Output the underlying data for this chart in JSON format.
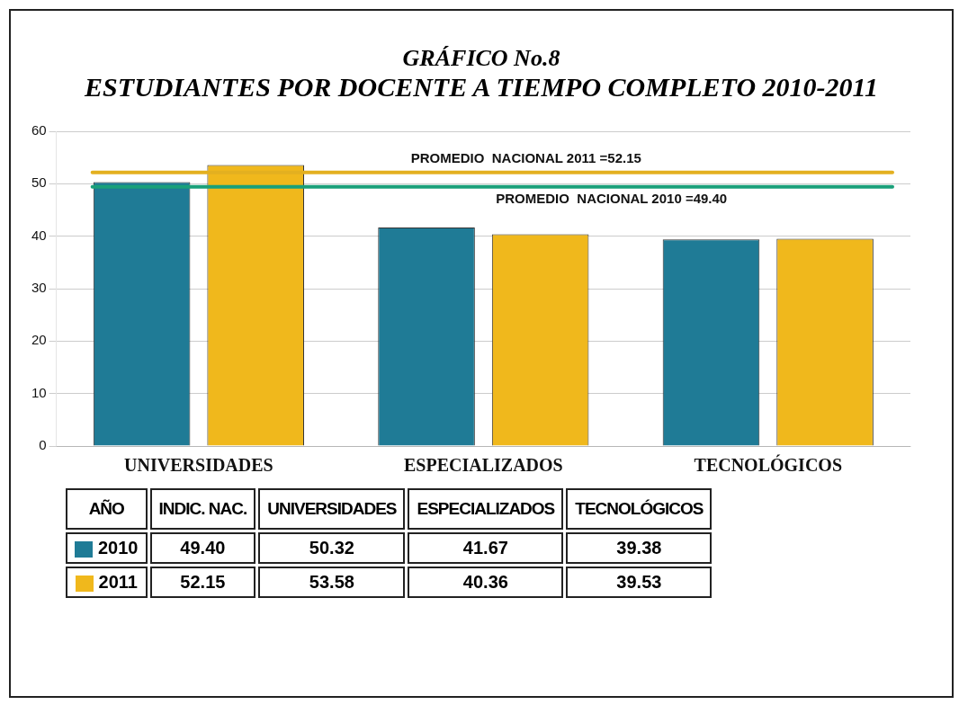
{
  "chart_data": {
    "type": "bar",
    "title": "GRÁFICO No.8",
    "subtitle": "ESTUDIANTES POR DOCENTE A TIEMPO COMPLETO 2010-2011",
    "categories": [
      "UNIVERSIDADES",
      "ESPECIALIZADOS",
      "TECNOLÓGICOS"
    ],
    "series": [
      {
        "name": "2010",
        "color": "#1f7b96",
        "values": [
          50.32,
          41.67,
          39.38
        ],
        "value_labels": [
          "50.32",
          "41.67",
          "39.38"
        ]
      },
      {
        "name": "2011",
        "color": "#f0b81c",
        "values": [
          53.58,
          40.36,
          39.53
        ],
        "value_labels": [
          "53.58",
          "40.36",
          "39.53"
        ]
      }
    ],
    "ylim": [
      0,
      60
    ],
    "yticks": [
      0,
      10,
      20,
      30,
      40,
      50,
      60
    ],
    "grid": "y",
    "legend": "bottom",
    "legend_title": "AÑO",
    "ref_lines": [
      {
        "axis": "y",
        "value": 49.4,
        "label": "PROMEDIO  NACIONAL 2010 =49.40",
        "color": "#1aa07a"
      },
      {
        "axis": "y",
        "value": 52.15,
        "label": "PROMEDIO  NACIONAL 2011 =52.15",
        "color": "#e3b020"
      }
    ],
    "annotations": [
      "INDIC. NAC.",
      "49.40",
      "52.15"
    ]
  }
}
